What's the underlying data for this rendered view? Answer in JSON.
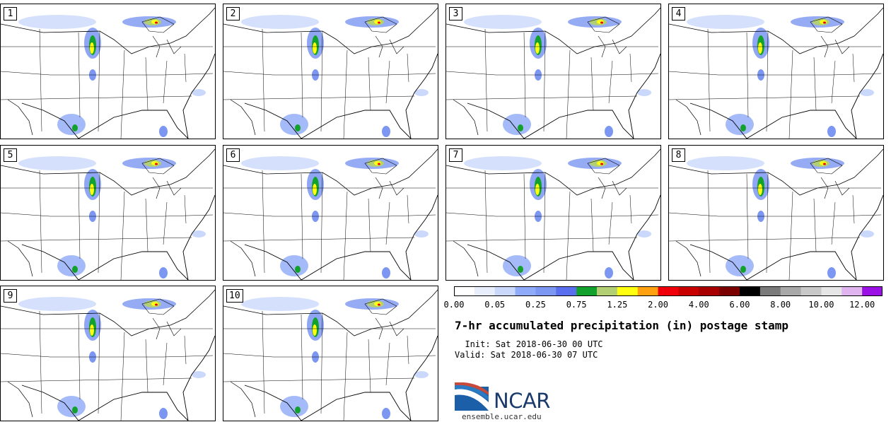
{
  "panels": [
    {
      "label": "1"
    },
    {
      "label": "2"
    },
    {
      "label": "3"
    },
    {
      "label": "4"
    },
    {
      "label": "5"
    },
    {
      "label": "6"
    },
    {
      "label": "7"
    },
    {
      "label": "8"
    },
    {
      "label": "9"
    },
    {
      "label": "10"
    }
  ],
  "legend": {
    "colors": [
      "#ffffff",
      "#e8eefc",
      "#cad9fb",
      "#8eaaf8",
      "#7b97f2",
      "#5a6ef0",
      "#12a12c",
      "#b2cf74",
      "#ffff10",
      "#ffa110",
      "#f0000a",
      "#c80000",
      "#a80000",
      "#7a0000",
      "#000000",
      "#7a7a7a",
      "#a8a8a8",
      "#c8c8c8",
      "#e6e6e6",
      "#dfb4ef",
      "#9b10e5"
    ],
    "tick_labels": [
      "0.00",
      "0.05",
      "0.25",
      "0.75",
      "1.25",
      "2.00",
      "4.00",
      "6.00",
      "8.00",
      "10.00",
      "12.00"
    ]
  },
  "title": "7-hr accumulated precipitation (in) postage stamp",
  "init": "  Init: Sat 2018-06-30 00 UTC",
  "valid": "Valid: Sat 2018-06-30 07 UTC",
  "logo_text": "NCAR",
  "url": "ensemble.ucar.edu"
}
